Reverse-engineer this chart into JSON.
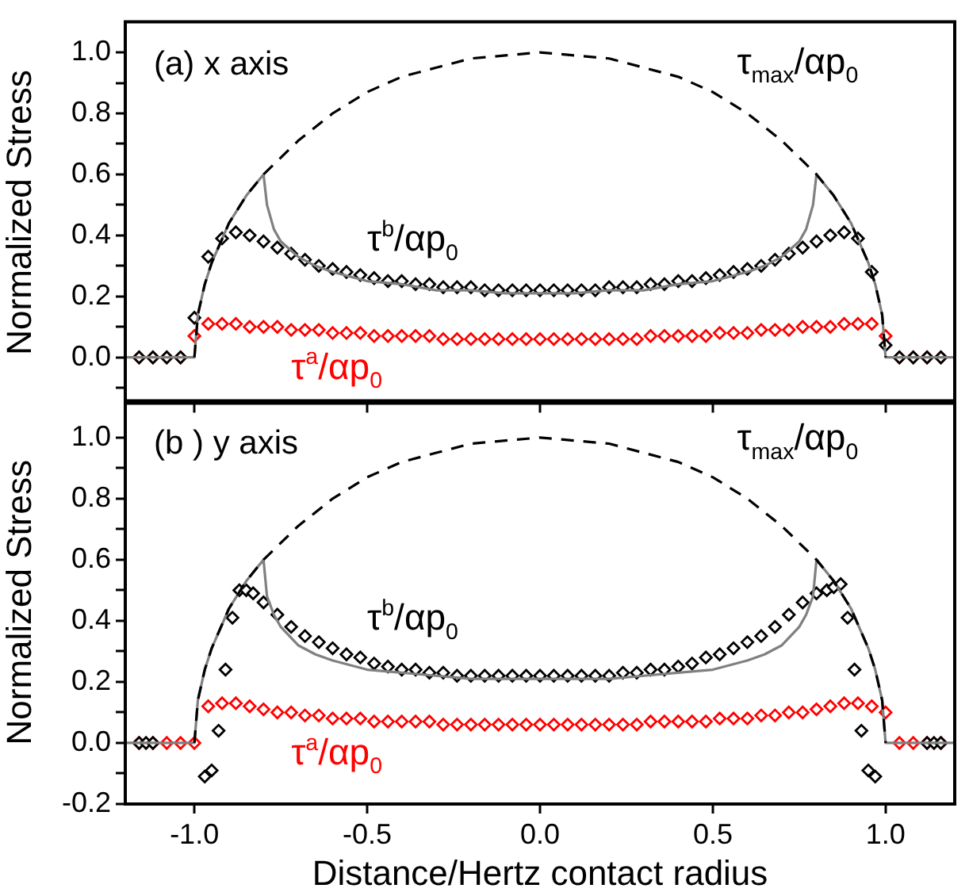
{
  "chart_data": [
    {
      "type": "line",
      "title": "(a) x axis",
      "ylabel": "Normalized Stress",
      "tick_labels": "y",
      "xlim": [
        -1.2,
        1.2
      ],
      "xticks": [
        {
          "value": -1,
          "label": null
        },
        {
          "value": -0.5,
          "label": null
        },
        {
          "value": 0,
          "label": null
        },
        {
          "value": 0.5,
          "label": null
        },
        {
          "value": 1,
          "label": null
        }
      ],
      "ylim": [
        -0.15,
        1.1
      ],
      "yticks": [
        {
          "value": -0.1,
          "label": null
        },
        {
          "value": 0,
          "label": "0.0"
        },
        {
          "value": 0.1,
          "label": null
        },
        {
          "value": 0.2,
          "label": "0.2"
        },
        {
          "value": 0.3,
          "label": null
        },
        {
          "value": 0.4,
          "label": "0.4"
        },
        {
          "value": 0.5,
          "label": null
        },
        {
          "value": 0.6,
          "label": "0.6"
        },
        {
          "value": 0.7,
          "label": null
        },
        {
          "value": 0.8,
          "label": "0.8"
        },
        {
          "value": 0.9,
          "label": null
        },
        {
          "value": 1,
          "label": "1.0"
        }
      ],
      "series": [
        {
          "type": "line",
          "name": "τ$_{max}$/αp$_{0}$",
          "color": "#000000",
          "line_style": "dashed",
          "marker": "none",
          "x": [
            -1,
            -0.99,
            -0.97,
            -0.95,
            -0.9,
            -0.85,
            -0.8,
            -0.7,
            -0.6,
            -0.5,
            -0.4,
            -0.3,
            -0.2,
            -0.1,
            0,
            0.1,
            0.2,
            0.3,
            0.4,
            0.5,
            0.6,
            0.7,
            0.8,
            0.85,
            0.9,
            0.95,
            0.97,
            0.99,
            1
          ],
          "values": [
            0,
            0.14,
            0.24,
            0.31,
            0.44,
            0.53,
            0.6,
            0.71,
            0.8,
            0.87,
            0.92,
            0.95,
            0.98,
            0.99,
            1,
            0.99,
            0.98,
            0.95,
            0.92,
            0.87,
            0.8,
            0.71,
            0.6,
            0.53,
            0.44,
            0.31,
            0.24,
            0.14,
            0
          ]
        },
        {
          "type": "line",
          "color": "#808080",
          "line_style": "solid",
          "marker": "none",
          "x": [
            -1.2,
            -1,
            -0.99,
            -0.97,
            -0.95,
            -0.9,
            -0.85,
            -0.8,
            -0.79,
            -0.77,
            -0.75,
            -0.7,
            -0.65,
            -0.6,
            -0.5,
            -0.4,
            -0.3,
            -0.2,
            -0.1,
            0,
            0.1,
            0.2,
            0.3,
            0.4,
            0.5,
            0.6,
            0.65,
            0.7,
            0.75,
            0.77,
            0.79,
            0.8,
            0.85,
            0.9,
            0.95,
            0.97,
            0.99,
            1,
            1.2
          ],
          "values": [
            0,
            0,
            0.14,
            0.24,
            0.31,
            0.44,
            0.53,
            0.6,
            0.5,
            0.42,
            0.38,
            0.33,
            0.3,
            0.28,
            0.25,
            0.24,
            0.22,
            0.22,
            0.21,
            0.21,
            0.21,
            0.22,
            0.22,
            0.24,
            0.25,
            0.28,
            0.3,
            0.33,
            0.38,
            0.42,
            0.5,
            0.6,
            0.53,
            0.44,
            0.31,
            0.24,
            0.14,
            0,
            0
          ]
        },
        {
          "type": "scatter",
          "name": "τ$^{b}$/αp$_{0}$",
          "color": "#000000",
          "marker": "diamond",
          "x": [
            -1.16,
            -1.12,
            -1.08,
            -1.04,
            -1,
            -0.96,
            -0.92,
            -0.88,
            -0.84,
            -0.8,
            -0.76,
            -0.72,
            -0.68,
            -0.64,
            -0.6,
            -0.56,
            -0.52,
            -0.48,
            -0.44,
            -0.4,
            -0.36,
            -0.32,
            -0.28,
            -0.24,
            -0.2,
            -0.16,
            -0.12,
            -0.08,
            -0.04,
            0,
            0.04,
            0.08,
            0.12,
            0.16,
            0.2,
            0.24,
            0.28,
            0.32,
            0.36,
            0.4,
            0.44,
            0.48,
            0.52,
            0.56,
            0.6,
            0.64,
            0.68,
            0.72,
            0.76,
            0.8,
            0.84,
            0.88,
            0.92,
            0.96,
            1,
            1.04,
            1.08,
            1.12,
            1.16
          ],
          "values": [
            0,
            0,
            0,
            0,
            0.13,
            0.33,
            0.39,
            0.41,
            0.4,
            0.38,
            0.36,
            0.34,
            0.32,
            0.3,
            0.29,
            0.28,
            0.27,
            0.26,
            0.25,
            0.25,
            0.24,
            0.24,
            0.23,
            0.23,
            0.23,
            0.22,
            0.22,
            0.22,
            0.22,
            0.22,
            0.22,
            0.22,
            0.22,
            0.22,
            0.23,
            0.23,
            0.23,
            0.24,
            0.24,
            0.25,
            0.25,
            0.26,
            0.27,
            0.28,
            0.29,
            0.3,
            0.32,
            0.34,
            0.36,
            0.38,
            0.4,
            0.41,
            0.39,
            0.28,
            0.04,
            0,
            0,
            0,
            0
          ]
        },
        {
          "type": "scatter",
          "name": "τ$^{a}$/αp$_{0}$",
          "color": "#ff0000",
          "marker": "diamond",
          "x": [
            -1.16,
            -1.12,
            -1.08,
            -1.04,
            -1,
            -0.96,
            -0.92,
            -0.88,
            -0.84,
            -0.8,
            -0.76,
            -0.72,
            -0.68,
            -0.64,
            -0.6,
            -0.56,
            -0.52,
            -0.48,
            -0.44,
            -0.4,
            -0.36,
            -0.32,
            -0.28,
            -0.24,
            -0.2,
            -0.16,
            -0.12,
            -0.08,
            -0.04,
            0,
            0.04,
            0.08,
            0.12,
            0.16,
            0.2,
            0.24,
            0.28,
            0.32,
            0.36,
            0.4,
            0.44,
            0.48,
            0.52,
            0.56,
            0.6,
            0.64,
            0.68,
            0.72,
            0.76,
            0.8,
            0.84,
            0.88,
            0.92,
            0.96,
            1,
            1.04,
            1.08,
            1.12,
            1.16
          ],
          "values": [
            0,
            0,
            0,
            0,
            0.07,
            0.11,
            0.11,
            0.11,
            0.1,
            0.1,
            0.1,
            0.09,
            0.09,
            0.09,
            0.08,
            0.08,
            0.08,
            0.07,
            0.07,
            0.07,
            0.07,
            0.07,
            0.06,
            0.06,
            0.06,
            0.06,
            0.06,
            0.06,
            0.06,
            0.06,
            0.06,
            0.06,
            0.06,
            0.06,
            0.06,
            0.06,
            0.06,
            0.07,
            0.07,
            0.07,
            0.07,
            0.07,
            0.08,
            0.08,
            0.08,
            0.09,
            0.09,
            0.09,
            0.1,
            0.1,
            0.1,
            0.11,
            0.11,
            0.11,
            0.07,
            0,
            0,
            0,
            0
          ]
        }
      ]
    },
    {
      "type": "line",
      "title": "(b ) y axis",
      "ylabel": "Normalized Stress",
      "xlabel": "Distance/Hertz contact radius",
      "xlim": [
        -1.2,
        1.2
      ],
      "xticks": [
        {
          "value": -1,
          "label": "-1.0"
        },
        {
          "value": -0.5,
          "label": "-0.5"
        },
        {
          "value": 0,
          "label": "0.0"
        },
        {
          "value": 0.5,
          "label": "0.5"
        },
        {
          "value": 1,
          "label": "1.0"
        }
      ],
      "ylim": [
        -0.2,
        1.12
      ],
      "yticks": [
        {
          "value": -0.2,
          "label": "-0.2"
        },
        {
          "value": -0.1,
          "label": null
        },
        {
          "value": 0,
          "label": "0.0"
        },
        {
          "value": 0.1,
          "label": null
        },
        {
          "value": 0.2,
          "label": "0.2"
        },
        {
          "value": 0.3,
          "label": null
        },
        {
          "value": 0.4,
          "label": "0.4"
        },
        {
          "value": 0.5,
          "label": null
        },
        {
          "value": 0.6,
          "label": "0.6"
        },
        {
          "value": 0.7,
          "label": null
        },
        {
          "value": 0.8,
          "label": "0.8"
        },
        {
          "value": 0.9,
          "label": null
        },
        {
          "value": 1,
          "label": "1.0"
        }
      ],
      "series": [
        {
          "type": "line",
          "name": "τ$_{max}$/αp$_{0}$",
          "color": "#000000",
          "line_style": "dashed",
          "marker": "none",
          "x": [
            -1,
            -0.99,
            -0.97,
            -0.95,
            -0.9,
            -0.85,
            -0.8,
            -0.7,
            -0.6,
            -0.5,
            -0.4,
            -0.3,
            -0.2,
            -0.1,
            0,
            0.1,
            0.2,
            0.3,
            0.4,
            0.5,
            0.6,
            0.7,
            0.8,
            0.85,
            0.9,
            0.95,
            0.97,
            0.99,
            1
          ],
          "values": [
            0,
            0.14,
            0.24,
            0.31,
            0.44,
            0.53,
            0.6,
            0.71,
            0.8,
            0.87,
            0.92,
            0.95,
            0.98,
            0.99,
            1,
            0.99,
            0.98,
            0.95,
            0.92,
            0.87,
            0.8,
            0.71,
            0.6,
            0.53,
            0.44,
            0.31,
            0.24,
            0.14,
            0
          ]
        },
        {
          "type": "line",
          "color": "#808080",
          "line_style": "solid",
          "marker": "none",
          "x": [
            -1.2,
            -1,
            -0.99,
            -0.97,
            -0.95,
            -0.9,
            -0.85,
            -0.8,
            -0.79,
            -0.77,
            -0.75,
            -0.7,
            -0.65,
            -0.6,
            -0.5,
            -0.4,
            -0.3,
            -0.2,
            -0.1,
            0,
            0.1,
            0.2,
            0.3,
            0.4,
            0.5,
            0.6,
            0.65,
            0.7,
            0.75,
            0.77,
            0.79,
            0.8,
            0.85,
            0.9,
            0.95,
            0.97,
            0.99,
            1,
            1.2
          ],
          "values": [
            0,
            0,
            0.14,
            0.24,
            0.31,
            0.44,
            0.53,
            0.6,
            0.48,
            0.42,
            0.38,
            0.32,
            0.29,
            0.27,
            0.24,
            0.23,
            0.22,
            0.21,
            0.21,
            0.21,
            0.21,
            0.21,
            0.22,
            0.23,
            0.24,
            0.27,
            0.29,
            0.32,
            0.38,
            0.42,
            0.48,
            0.6,
            0.53,
            0.44,
            0.31,
            0.24,
            0.14,
            0,
            0
          ]
        },
        {
          "type": "scatter",
          "name": "τ$^{b}$/αp$_{0}$",
          "color": "#000000",
          "marker": "diamond",
          "x": [
            -1.16,
            -1.14,
            -1.12,
            -0.97,
            -0.95,
            -0.93,
            -0.91,
            -0.89,
            -0.87,
            -0.85,
            -0.83,
            -0.8,
            -0.76,
            -0.72,
            -0.68,
            -0.64,
            -0.6,
            -0.56,
            -0.52,
            -0.48,
            -0.44,
            -0.4,
            -0.36,
            -0.32,
            -0.28,
            -0.24,
            -0.2,
            -0.16,
            -0.12,
            -0.08,
            -0.04,
            0,
            0.04,
            0.08,
            0.12,
            0.16,
            0.2,
            0.24,
            0.28,
            0.32,
            0.36,
            0.4,
            0.44,
            0.48,
            0.52,
            0.56,
            0.6,
            0.64,
            0.68,
            0.72,
            0.76,
            0.8,
            0.83,
            0.85,
            0.87,
            0.89,
            0.91,
            0.93,
            0.95,
            0.97,
            1.12,
            1.14,
            1.16
          ],
          "values": [
            0,
            0,
            0,
            -0.11,
            -0.09,
            0.04,
            0.24,
            0.41,
            0.5,
            0.5,
            0.49,
            0.46,
            0.42,
            0.38,
            0.35,
            0.33,
            0.31,
            0.29,
            0.28,
            0.26,
            0.25,
            0.24,
            0.24,
            0.23,
            0.23,
            0.22,
            0.22,
            0.22,
            0.22,
            0.22,
            0.22,
            0.22,
            0.22,
            0.22,
            0.22,
            0.22,
            0.22,
            0.23,
            0.23,
            0.24,
            0.24,
            0.25,
            0.26,
            0.28,
            0.29,
            0.31,
            0.33,
            0.35,
            0.38,
            0.42,
            0.46,
            0.49,
            0.5,
            0.51,
            0.52,
            0.41,
            0.24,
            0.04,
            -0.09,
            -0.11,
            0,
            0,
            0
          ]
        },
        {
          "type": "scatter",
          "name": "τ$^{a}$/αp$_{0}$",
          "color": "#ff0000",
          "marker": "diamond",
          "x": [
            -1.16,
            -1.12,
            -1.08,
            -1.04,
            -1,
            -0.96,
            -0.92,
            -0.88,
            -0.84,
            -0.8,
            -0.76,
            -0.72,
            -0.68,
            -0.64,
            -0.6,
            -0.56,
            -0.52,
            -0.48,
            -0.44,
            -0.4,
            -0.36,
            -0.32,
            -0.28,
            -0.24,
            -0.2,
            -0.16,
            -0.12,
            -0.08,
            -0.04,
            0,
            0.04,
            0.08,
            0.12,
            0.16,
            0.2,
            0.24,
            0.28,
            0.32,
            0.36,
            0.4,
            0.44,
            0.48,
            0.52,
            0.56,
            0.6,
            0.64,
            0.68,
            0.72,
            0.76,
            0.8,
            0.84,
            0.88,
            0.92,
            0.96,
            1,
            1.04,
            1.08,
            1.12,
            1.16
          ],
          "values": [
            0,
            0,
            0,
            0,
            0,
            0.12,
            0.13,
            0.13,
            0.12,
            0.11,
            0.1,
            0.1,
            0.09,
            0.09,
            0.08,
            0.08,
            0.08,
            0.07,
            0.07,
            0.07,
            0.07,
            0.07,
            0.06,
            0.06,
            0.06,
            0.06,
            0.06,
            0.06,
            0.06,
            0.06,
            0.06,
            0.06,
            0.06,
            0.06,
            0.06,
            0.06,
            0.06,
            0.07,
            0.07,
            0.07,
            0.07,
            0.07,
            0.08,
            0.08,
            0.08,
            0.09,
            0.09,
            0.1,
            0.1,
            0.11,
            0.12,
            0.13,
            0.13,
            0.12,
            0.1,
            0,
            0,
            0,
            0
          ]
        }
      ]
    }
  ]
}
